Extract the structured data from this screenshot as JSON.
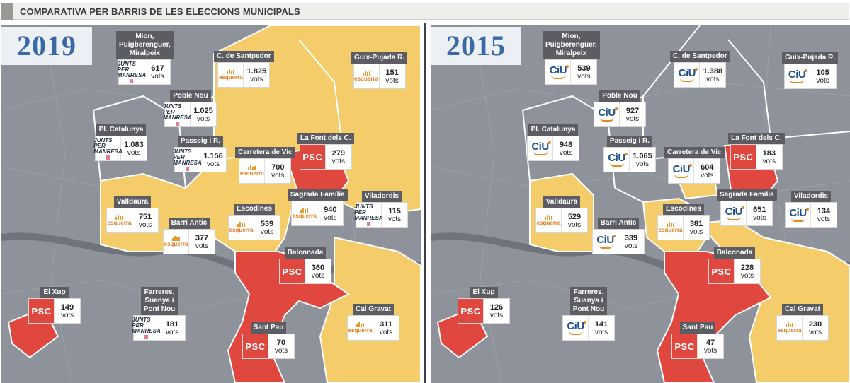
{
  "header": {
    "title": "COMPARATIVA PER BARRIS DE LES ELECCIONS MUNICIPALS"
  },
  "colors": {
    "psc": "#e0473f",
    "esquerra": "#f4cc6a",
    "jxc": "#8e929b",
    "ciu": "#8e929b",
    "background_map": "#8e929b"
  },
  "legend_words": {
    "unit": "vots"
  },
  "panels": [
    {
      "year": "2019",
      "labels": [
        {
          "name": "Mion, Puigberenguer, Miralpeix",
          "party": "jxc",
          "votes": "617",
          "unit": "vots"
        },
        {
          "name": "C. de Santpedor",
          "party": "esquerra",
          "votes": "1.825",
          "unit": "vots"
        },
        {
          "name": "Guix-Pujada R.",
          "party": "esquerra",
          "votes": "151",
          "unit": "vots"
        },
        {
          "name": "Poble Nou",
          "party": "jxc",
          "votes": "1.025",
          "unit": "vots"
        },
        {
          "name": "Pl. Catalunya",
          "party": "jxc",
          "votes": "1.083",
          "unit": "vots"
        },
        {
          "name": "Passeig i R.",
          "party": "jxc",
          "votes": "1.156",
          "unit": "vots"
        },
        {
          "name": "La Font dels C.",
          "party": "psc",
          "votes": "279",
          "unit": "vots"
        },
        {
          "name": "Carretera de Vic",
          "party": "esquerra",
          "votes": "700",
          "unit": "vots"
        },
        {
          "name": "Sagrada Família",
          "party": "esquerra",
          "votes": "940",
          "unit": "vots"
        },
        {
          "name": "Viladordis",
          "party": "jxc",
          "votes": "115",
          "unit": "vots"
        },
        {
          "name": "Valldaura",
          "party": "esquerra",
          "votes": "751",
          "unit": "vots"
        },
        {
          "name": "Escodines",
          "party": "esquerra",
          "votes": "539",
          "unit": "vots"
        },
        {
          "name": "Barri Antic",
          "party": "esquerra",
          "votes": "377",
          "unit": "vots"
        },
        {
          "name": "Balconada",
          "party": "psc",
          "votes": "360",
          "unit": "vots"
        },
        {
          "name": "El Xup",
          "party": "psc",
          "votes": "149",
          "unit": "vots"
        },
        {
          "name": "Farreres, Suanya i Pont Nou",
          "party": "jxc",
          "votes": "181",
          "unit": "vots"
        },
        {
          "name": "Cal Gravat",
          "party": "esquerra",
          "votes": "311",
          "unit": "vots"
        },
        {
          "name": "Sant Pau",
          "party": "psc",
          "votes": "70",
          "unit": "vots"
        }
      ]
    },
    {
      "year": "2015",
      "labels": [
        {
          "name": "Mion, Puigberenguer, Miralpeix",
          "party": "ciu",
          "votes": "539",
          "unit": "vots"
        },
        {
          "name": "C. de Santpedor",
          "party": "ciu",
          "votes": "1.388",
          "unit": "vots"
        },
        {
          "name": "Guix-Pujada R.",
          "party": "ciu",
          "votes": "105",
          "unit": "vots"
        },
        {
          "name": "Poble Nou",
          "party": "ciu",
          "votes": "927",
          "unit": "vots"
        },
        {
          "name": "Pl. Catalunya",
          "party": "ciu",
          "votes": "948",
          "unit": "vots"
        },
        {
          "name": "Passeig i R.",
          "party": "ciu",
          "votes": "1.065",
          "unit": "vots"
        },
        {
          "name": "La Font dels C.",
          "party": "psc",
          "votes": "183",
          "unit": "vots"
        },
        {
          "name": "Carretera de Vic",
          "party": "ciu",
          "votes": "604",
          "unit": "vots"
        },
        {
          "name": "Sagrada Família",
          "party": "ciu",
          "votes": "651",
          "unit": "vots"
        },
        {
          "name": "Viladordis",
          "party": "ciu",
          "votes": "134",
          "unit": "vots"
        },
        {
          "name": "Valldaura",
          "party": "esquerra",
          "votes": "529",
          "unit": "vots"
        },
        {
          "name": "Escodines",
          "party": "esquerra",
          "votes": "381",
          "unit": "vots"
        },
        {
          "name": "Barri Antic",
          "party": "ciu",
          "votes": "339",
          "unit": "vots"
        },
        {
          "name": "Balconada",
          "party": "psc",
          "votes": "228",
          "unit": "vots"
        },
        {
          "name": "El Xup",
          "party": "psc",
          "votes": "126",
          "unit": "vots"
        },
        {
          "name": "Farreres, Suanya i Pont Nou",
          "party": "ciu",
          "votes": "141",
          "unit": "vots"
        },
        {
          "name": "Cal Gravat",
          "party": "esquerra",
          "votes": "230",
          "unit": "vots"
        },
        {
          "name": "Sant Pau",
          "party": "psc",
          "votes": "47",
          "unit": "vots"
        }
      ]
    }
  ],
  "logo_text": {
    "psc": "PSC",
    "esquerra": "esquerra",
    "jxc_line1": "JUNTS PER",
    "jxc_line2": "MANRESA",
    "ciu": "CiU"
  }
}
